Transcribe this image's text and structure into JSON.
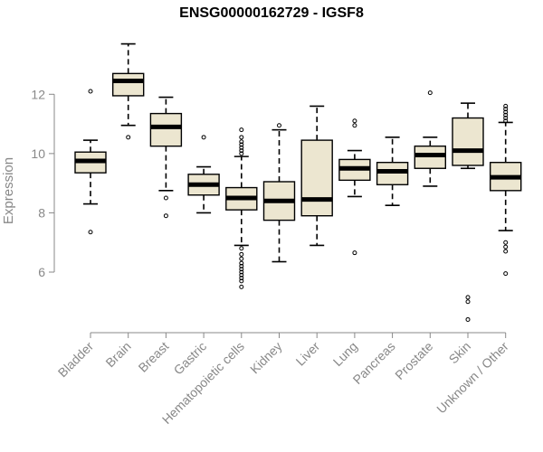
{
  "chart_data": {
    "type": "boxplot",
    "title": "ENSG00000162729 - IGSF8",
    "xlabel": "",
    "ylabel": "Expression",
    "ylim": [
      4.2,
      13.9
    ],
    "yticks": [
      6,
      8,
      10,
      12
    ],
    "colors": {
      "box_fill": "#ece6d0",
      "stroke": "#000000",
      "axis": "#888888"
    },
    "categories": [
      "Bladder",
      "Brain",
      "Breast",
      "Gastric",
      "Hematopoietic cells",
      "Kidney",
      "Liver",
      "Lung",
      "Pancreas",
      "Prostate",
      "Skin",
      "Unknown / Other"
    ],
    "boxes": [
      {
        "q1": 9.35,
        "median": 9.75,
        "q3": 10.05,
        "whisker_low": 8.3,
        "whisker_high": 10.45,
        "outliers": [
          12.1,
          7.35
        ]
      },
      {
        "q1": 11.95,
        "median": 12.45,
        "q3": 12.7,
        "whisker_low": 10.95,
        "whisker_high": 13.7,
        "outliers": [
          10.55
        ]
      },
      {
        "q1": 10.25,
        "median": 10.9,
        "q3": 11.35,
        "whisker_low": 8.75,
        "whisker_high": 11.9,
        "outliers": [
          8.5,
          7.9
        ]
      },
      {
        "q1": 8.6,
        "median": 8.95,
        "q3": 9.3,
        "whisker_low": 8.0,
        "whisker_high": 9.55,
        "outliers": [
          10.55
        ]
      },
      {
        "q1": 8.1,
        "median": 8.5,
        "q3": 8.85,
        "whisker_low": 6.9,
        "whisker_high": 9.9,
        "outliers": [
          10.0,
          10.1,
          10.2,
          10.3,
          10.4,
          10.55,
          10.8,
          6.8,
          6.6,
          6.45,
          6.3,
          6.2,
          6.1,
          6.0,
          5.9,
          5.8,
          5.7,
          5.5
        ]
      },
      {
        "q1": 7.75,
        "median": 8.4,
        "q3": 9.05,
        "whisker_low": 6.35,
        "whisker_high": 10.8,
        "outliers": [
          10.95
        ]
      },
      {
        "q1": 7.9,
        "median": 8.45,
        "q3": 10.45,
        "whisker_low": 6.9,
        "whisker_high": 11.6,
        "outliers": []
      },
      {
        "q1": 9.1,
        "median": 9.5,
        "q3": 9.8,
        "whisker_low": 8.55,
        "whisker_high": 10.1,
        "outliers": [
          11.1,
          10.95,
          6.65
        ]
      },
      {
        "q1": 8.95,
        "median": 9.4,
        "q3": 9.7,
        "whisker_low": 8.25,
        "whisker_high": 10.55,
        "outliers": []
      },
      {
        "q1": 9.5,
        "median": 9.95,
        "q3": 10.25,
        "whisker_low": 8.9,
        "whisker_high": 10.55,
        "outliers": [
          12.05
        ]
      },
      {
        "q1": 9.6,
        "median": 10.1,
        "q3": 11.2,
        "whisker_low": 9.5,
        "whisker_high": 11.7,
        "outliers": [
          5.15,
          5.0,
          4.4
        ]
      },
      {
        "q1": 8.75,
        "median": 9.2,
        "q3": 9.7,
        "whisker_low": 7.4,
        "whisker_high": 11.05,
        "outliers": [
          11.1,
          11.2,
          11.3,
          11.4,
          11.5,
          11.6,
          7.0,
          6.85,
          6.7,
          5.95
        ]
      }
    ]
  }
}
